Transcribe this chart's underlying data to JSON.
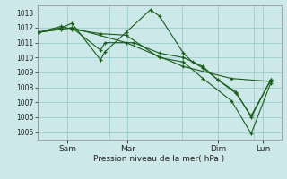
{
  "background_color": "#cce8e8",
  "grid_color": "#99cccc",
  "line_color": "#1a5c1a",
  "marker_color": "#1a5c1a",
  "xlabel_text": "Pression niveau de la mer( hPa )",
  "xtick_labels": [
    "Sam",
    "Mar",
    "Dim",
    "Lun"
  ],
  "xtick_positions": [
    1,
    3,
    6,
    7.5
  ],
  "xlim": [
    0,
    8.1
  ],
  "ylim": [
    1004.5,
    1013.5
  ],
  "yticks": [
    1005,
    1006,
    1007,
    1008,
    1009,
    1010,
    1011,
    1012,
    1013
  ],
  "series": [
    {
      "x": [
        0.05,
        0.8,
        1.15,
        2.1,
        2.25,
        2.95,
        3.75,
        4.05,
        4.85,
        5.15,
        5.5,
        6.0,
        6.6,
        7.1,
        7.75
      ],
      "y": [
        1011.7,
        1012.0,
        1012.3,
        1009.85,
        1010.4,
        1011.7,
        1013.2,
        1012.8,
        1010.3,
        1009.7,
        1009.3,
        1008.5,
        1007.6,
        1006.1,
        1008.5
      ]
    },
    {
      "x": [
        0.05,
        0.8,
        1.15,
        2.1,
        2.25,
        3.2,
        4.05,
        4.85,
        5.5,
        6.0,
        6.6,
        7.1,
        7.75
      ],
      "y": [
        1011.7,
        1011.9,
        1012.0,
        1010.5,
        1011.0,
        1011.0,
        1010.3,
        1010.0,
        1009.4,
        1008.5,
        1007.7,
        1006.0,
        1008.5
      ]
    },
    {
      "x": [
        0.05,
        0.8,
        1.15,
        2.1,
        2.95,
        4.05,
        4.85,
        5.5,
        6.45,
        7.1,
        7.75
      ],
      "y": [
        1011.7,
        1012.1,
        1011.9,
        1011.6,
        1011.5,
        1010.0,
        1009.7,
        1008.6,
        1007.1,
        1004.9,
        1008.3
      ]
    },
    {
      "x": [
        0.05,
        1.15,
        2.95,
        4.85,
        6.45,
        7.75
      ],
      "y": [
        1011.7,
        1012.0,
        1011.0,
        1009.4,
        1008.6,
        1008.4
      ]
    }
  ]
}
